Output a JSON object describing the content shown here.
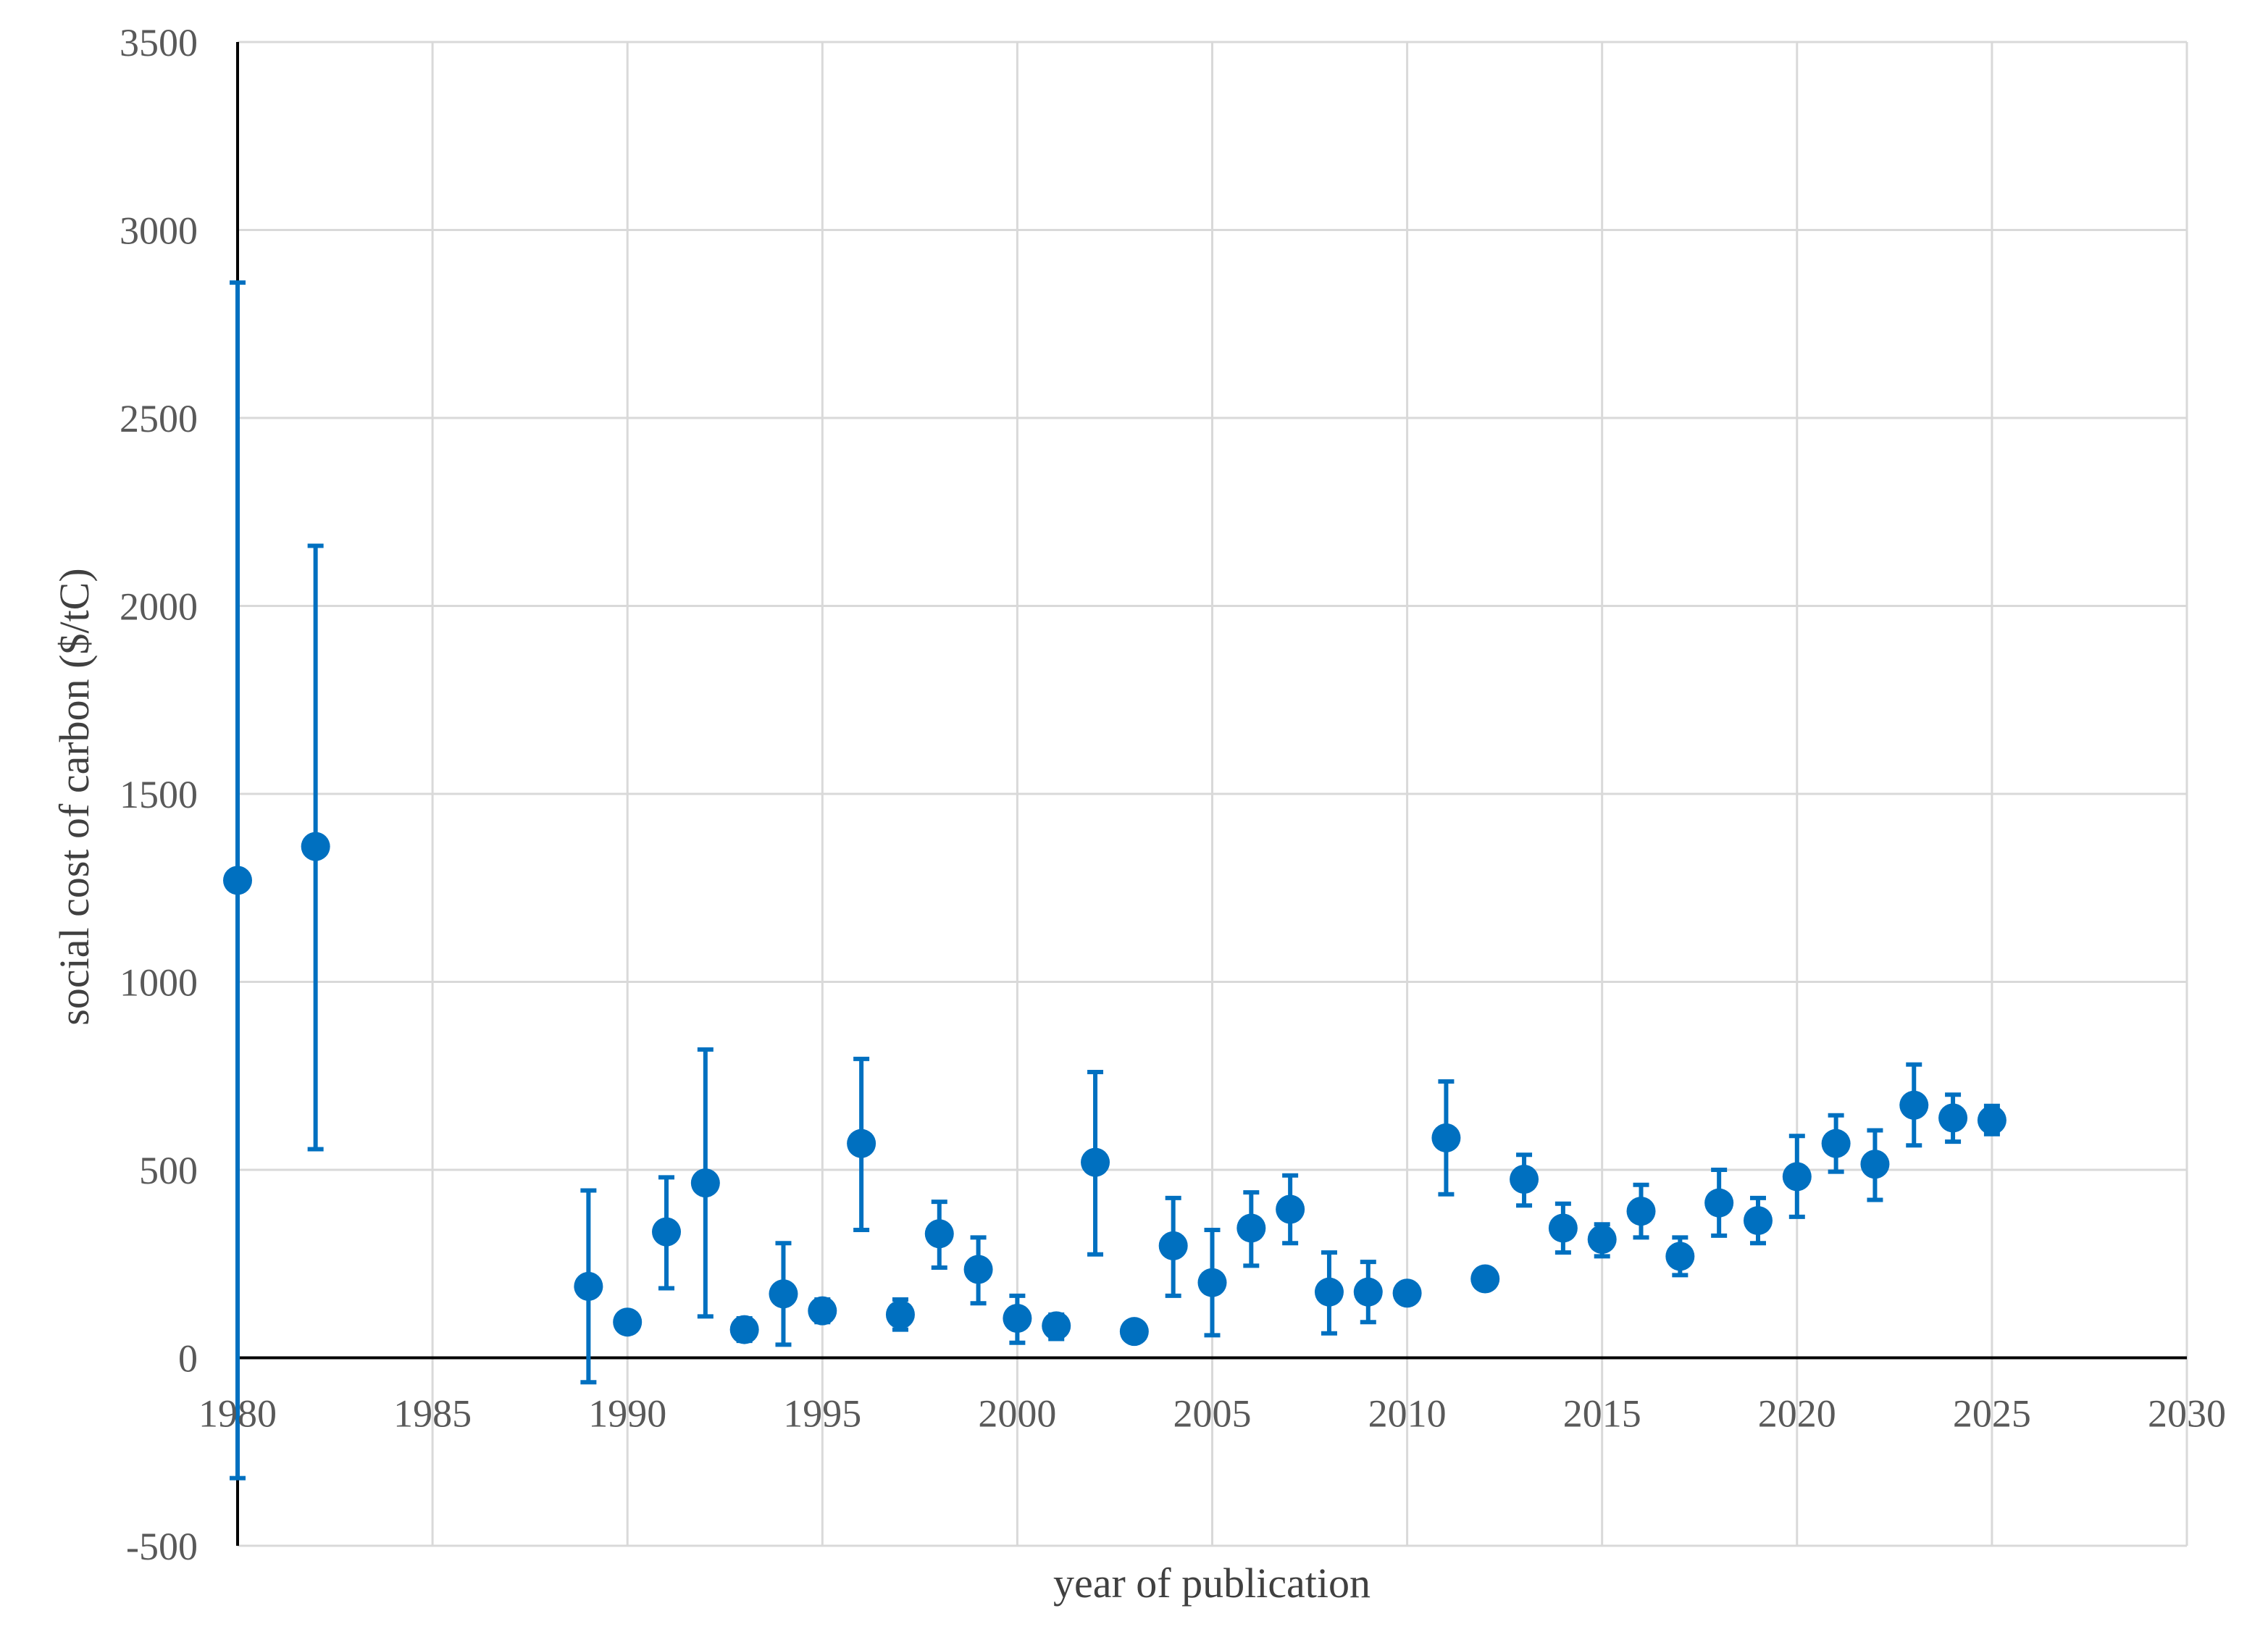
{
  "chart_data": {
    "type": "scatter",
    "title": "",
    "xlabel": "year of publication",
    "ylabel": "social cost of carbon ($/tC)",
    "xlim": [
      1980,
      2030
    ],
    "ylim": [
      -500,
      3500
    ],
    "x_ticks": [
      1980,
      1985,
      1990,
      1995,
      2000,
      2005,
      2010,
      2015,
      2020,
      2025,
      2030
    ],
    "y_ticks": [
      -500,
      0,
      500,
      1000,
      1500,
      2000,
      2500,
      3000,
      3500
    ],
    "grid": true,
    "legend": "none",
    "color": "#0070C0",
    "points": [
      {
        "x": 1980,
        "y": 1270,
        "lo": -320,
        "hi": 2860
      },
      {
        "x": 1982,
        "y": 1360,
        "lo": 555,
        "hi": 2160
      },
      {
        "x": 1989,
        "y": 190,
        "lo": -65,
        "hi": 445
      },
      {
        "x": 1990,
        "y": 95,
        "lo": 95,
        "hi": 95
      },
      {
        "x": 1991,
        "y": 335,
        "lo": 185,
        "hi": 480
      },
      {
        "x": 1992,
        "y": 465,
        "lo": 110,
        "hi": 820
      },
      {
        "x": 1993,
        "y": 75,
        "lo": 45,
        "hi": 105
      },
      {
        "x": 1994,
        "y": 170,
        "lo": 35,
        "hi": 305
      },
      {
        "x": 1995,
        "y": 125,
        "lo": 95,
        "hi": 155
      },
      {
        "x": 1996,
        "y": 570,
        "lo": 340,
        "hi": 795
      },
      {
        "x": 1997,
        "y": 115,
        "lo": 75,
        "hi": 155
      },
      {
        "x": 1998,
        "y": 330,
        "lo": 240,
        "hi": 415
      },
      {
        "x": 1999,
        "y": 235,
        "lo": 145,
        "hi": 320
      },
      {
        "x": 2000,
        "y": 105,
        "lo": 40,
        "hi": 165
      },
      {
        "x": 2001,
        "y": 85,
        "lo": 50,
        "hi": 115
      },
      {
        "x": 2002,
        "y": 520,
        "lo": 275,
        "hi": 760
      },
      {
        "x": 2003,
        "y": 70,
        "lo": 70,
        "hi": 70
      },
      {
        "x": 2004,
        "y": 298,
        "lo": 165,
        "hi": 425
      },
      {
        "x": 2005,
        "y": 200,
        "lo": 60,
        "hi": 340
      },
      {
        "x": 2006,
        "y": 345,
        "lo": 245,
        "hi": 440
      },
      {
        "x": 2007,
        "y": 395,
        "lo": 305,
        "hi": 485
      },
      {
        "x": 2008,
        "y": 175,
        "lo": 65,
        "hi": 280
      },
      {
        "x": 2009,
        "y": 175,
        "lo": 95,
        "hi": 255
      },
      {
        "x": 2010,
        "y": 172,
        "lo": 172,
        "hi": 172
      },
      {
        "x": 2011,
        "y": 585,
        "lo": 435,
        "hi": 735
      },
      {
        "x": 2012,
        "y": 210,
        "lo": 185,
        "hi": 235
      },
      {
        "x": 2013,
        "y": 475,
        "lo": 405,
        "hi": 540
      },
      {
        "x": 2014,
        "y": 345,
        "lo": 280,
        "hi": 410
      },
      {
        "x": 2015,
        "y": 315,
        "lo": 270,
        "hi": 355
      },
      {
        "x": 2016,
        "y": 390,
        "lo": 320,
        "hi": 460
      },
      {
        "x": 2017,
        "y": 270,
        "lo": 220,
        "hi": 320
      },
      {
        "x": 2018,
        "y": 412,
        "lo": 325,
        "hi": 500
      },
      {
        "x": 2019,
        "y": 365,
        "lo": 305,
        "hi": 425
      },
      {
        "x": 2020,
        "y": 482,
        "lo": 375,
        "hi": 590
      },
      {
        "x": 2021,
        "y": 570,
        "lo": 495,
        "hi": 645
      },
      {
        "x": 2022,
        "y": 515,
        "lo": 420,
        "hi": 605
      },
      {
        "x": 2023,
        "y": 672,
        "lo": 565,
        "hi": 780
      },
      {
        "x": 2024,
        "y": 638,
        "lo": 575,
        "hi": 700
      },
      {
        "x": 2025,
        "y": 632,
        "lo": 595,
        "hi": 670
      }
    ]
  }
}
